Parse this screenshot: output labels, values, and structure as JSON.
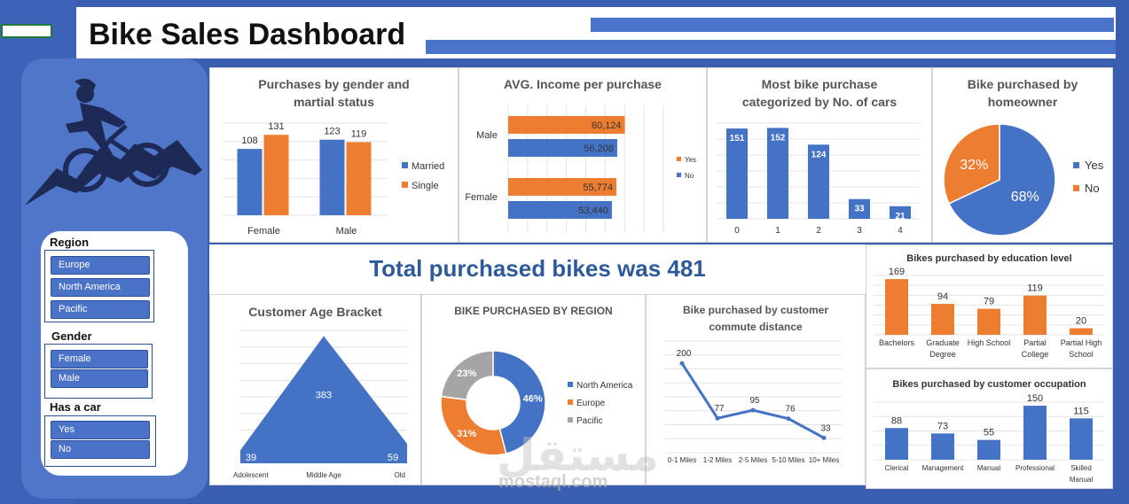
{
  "header": {
    "title": "Bike Sales Dashboard"
  },
  "icons": {
    "cyclist": "cyclist-logo-icon"
  },
  "slicers": {
    "region": {
      "title": "Region",
      "items": [
        "Europe",
        "North America",
        "Pacific"
      ]
    },
    "gender": {
      "title": "Gender",
      "items": [
        "Female",
        "Male"
      ]
    },
    "car": {
      "title": "Has a car",
      "items": [
        "Yes",
        "No"
      ]
    }
  },
  "total": {
    "text": "Total purchased bikes was 481"
  },
  "watermark": {
    "arabic": "مستقل",
    "latin": "mostaql.com"
  },
  "colors": {
    "blue": "#4472c4",
    "orange": "#ed7d31",
    "gray": "#a5a5a5",
    "accent": "#2f5a9a"
  },
  "chart_data": [
    {
      "id": "gender_marital",
      "type": "bar",
      "title": "Purchases by gender and martial status",
      "categories": [
        "Female",
        "Male"
      ],
      "series": [
        {
          "name": "Married",
          "values": [
            108,
            123
          ]
        },
        {
          "name": "Single",
          "values": [
            131,
            119
          ]
        }
      ],
      "legend": "right"
    },
    {
      "id": "avg_income",
      "type": "bar",
      "orientation": "horizontal",
      "title": "AVG. Income per purchase",
      "categories": [
        "Male",
        "Female"
      ],
      "series": [
        {
          "name": "Yes",
          "values": [
            60124,
            55774
          ],
          "labels": [
            "60,124",
            "55,774"
          ]
        },
        {
          "name": "No",
          "values": [
            56208,
            53440
          ],
          "labels": [
            "56,208",
            "53,440"
          ]
        }
      ],
      "legend": "right"
    },
    {
      "id": "cars",
      "type": "bar",
      "title": "Most bike purchase categorized by No. of cars",
      "categories": [
        "0",
        "1",
        "2",
        "3",
        "4"
      ],
      "values": [
        151,
        152,
        124,
        33,
        21
      ]
    },
    {
      "id": "homeowner",
      "type": "pie",
      "title": "Bike purchased by homeowner",
      "labels": [
        "Yes",
        "No"
      ],
      "values": [
        68,
        32
      ],
      "value_labels": [
        "68%",
        "32%"
      ],
      "legend": "right"
    },
    {
      "id": "education",
      "type": "bar",
      "title": "Bikes purchased by education level",
      "categories": [
        "Bachelors",
        "Graduate Degree",
        "High School",
        "Partial College",
        "Partial High School"
      ],
      "values": [
        169,
        94,
        79,
        119,
        20
      ]
    },
    {
      "id": "occupation",
      "type": "bar",
      "title": "Bikes purchased by customer occupation",
      "categories": [
        "Clerical",
        "Management",
        "Manual",
        "Professional",
        "Skilled Manual"
      ],
      "values": [
        88,
        73,
        55,
        150,
        115
      ]
    },
    {
      "id": "age",
      "type": "area",
      "title": "Customer Age Bracket",
      "categories": [
        "Adolescent",
        "Middle Age",
        "Old"
      ],
      "values": [
        39,
        383,
        59
      ]
    },
    {
      "id": "region",
      "type": "pie",
      "subtype": "donut",
      "title": "BIKE PURCHASED BY REGION",
      "labels": [
        "North America",
        "Europe",
        "Pacific"
      ],
      "values": [
        46,
        31,
        23
      ],
      "value_labels": [
        "46%",
        "31%",
        "23%"
      ],
      "legend": "right"
    },
    {
      "id": "commute",
      "type": "line",
      "title": "Bike purchased by customer commute distance",
      "categories": [
        "0-1 Miles",
        "1-2 Miles",
        "2-5 Miles",
        "5-10 Miles",
        "10+ Miles"
      ],
      "values": [
        200,
        77,
        95,
        76,
        33
      ]
    }
  ]
}
